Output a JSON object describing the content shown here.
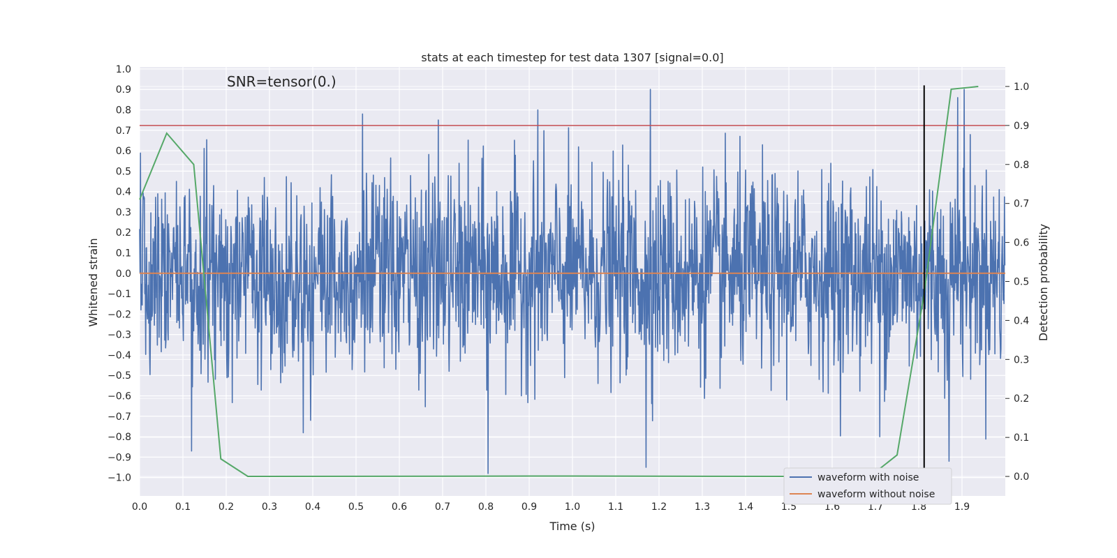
{
  "chart_data": {
    "type": "line",
    "title": "stats at each timestep for test data 1307 [signal=0.0]",
    "annotation": "SNR=tensor(0.)",
    "xlabel": "Time (s)",
    "ylabel": "Whitened strain",
    "y2label": "Detection probability",
    "xlim": [
      0.0,
      2.0
    ],
    "ylim": [
      -1.09,
      1.01
    ],
    "y2lim": [
      -0.05,
      1.05
    ],
    "xticks": [
      "0.0",
      "0.1",
      "0.2",
      "0.3",
      "0.4",
      "0.5",
      "0.6",
      "0.7",
      "0.8",
      "0.9",
      "1.0",
      "1.1",
      "1.2",
      "1.3",
      "1.4",
      "1.5",
      "1.6",
      "1.7",
      "1.8",
      "1.9"
    ],
    "yticks": [
      "1.0",
      "0.9",
      "0.8",
      "0.7",
      "0.6",
      "0.5",
      "0.4",
      "0.3",
      "0.2",
      "0.1",
      "0.0",
      "−0.1",
      "−0.2",
      "−0.3",
      "−0.4",
      "−0.5",
      "−0.6",
      "−0.7",
      "−0.8",
      "−0.9",
      "−1.0"
    ],
    "y2ticks": [
      "1.0",
      "0.9",
      "0.8",
      "0.7",
      "0.6",
      "0.5",
      "0.4",
      "0.3",
      "0.2",
      "0.1",
      "0.0"
    ],
    "grid": true,
    "legend_position": "lower-right",
    "series": [
      {
        "name": "waveform with noise",
        "color": "#4c72b0",
        "note_style": "dense noise, white-noise like, range approx -0.98 to 0.90",
        "peaks": [
          {
            "x": 0.515,
            "y": 0.78
          },
          {
            "x": 0.69,
            "y": 0.75
          },
          {
            "x": 0.805,
            "y": -0.98
          },
          {
            "x": 0.92,
            "y": 0.8
          },
          {
            "x": 1.18,
            "y": 0.9
          },
          {
            "x": 1.17,
            "y": -0.95
          },
          {
            "x": 1.71,
            "y": -0.8
          },
          {
            "x": 1.89,
            "y": 0.86
          },
          {
            "x": 1.905,
            "y": 0.9
          },
          {
            "x": 1.87,
            "y": -0.92
          },
          {
            "x": 0.12,
            "y": -0.87
          },
          {
            "x": 0.395,
            "y": -0.72
          }
        ]
      },
      {
        "name": "waveform without noise",
        "color": "#dd8452",
        "x": [
          0.0,
          2.0
        ],
        "y": [
          0.0,
          0.0
        ]
      },
      {
        "name": "detection probability",
        "color": "#55a868",
        "axis": "right",
        "x": [
          0.0,
          0.0625,
          0.125,
          0.1875,
          0.25,
          1.0,
          1.5,
          1.6875,
          1.75,
          1.8125,
          1.875,
          1.9375
        ],
        "y": [
          0.71,
          0.88,
          0.8,
          0.045,
          0.0,
          0.001,
          0.0,
          0.0,
          0.055,
          0.47,
          0.993,
          1.0
        ]
      }
    ],
    "threshold_line": {
      "color": "#c44e52",
      "y2": 0.9
    },
    "marker_line": {
      "color": "#000000",
      "x": 1.8125,
      "y_from": -1.0,
      "y_to": 0.92
    }
  }
}
